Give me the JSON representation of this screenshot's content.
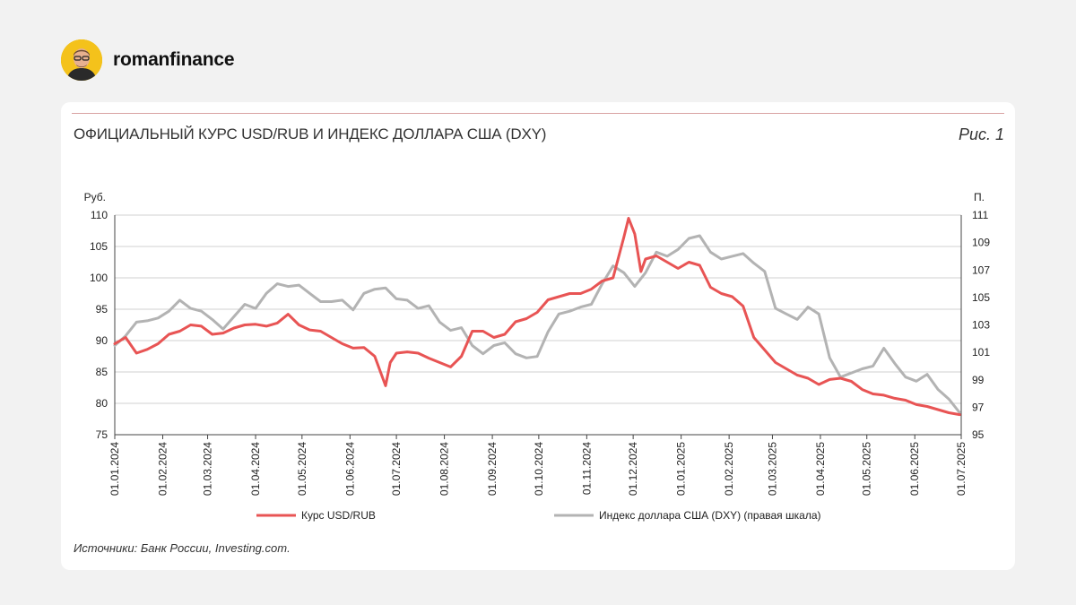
{
  "brand": {
    "name": "romanfinance"
  },
  "figure": {
    "title": "ОФИЦИАЛЬНЫЙ КУРС USD/RUB И ИНДЕКС ДОЛЛАРА США (DXY)",
    "label": "Рис. 1",
    "source": "Источники: Банк России, Investing.com."
  },
  "colors": {
    "usdrub": "#e85454",
    "dxy": "#b3b3b3",
    "grid": "#d0d0d0",
    "rule": "#d9a3a3"
  },
  "chart_data": {
    "type": "line",
    "y_left": {
      "label": "Руб.",
      "min": 75,
      "max": 110,
      "ticks": [
        75,
        80,
        85,
        90,
        95,
        100,
        105,
        110
      ]
    },
    "y_right": {
      "label": "П.",
      "min": 95,
      "max": 111,
      "ticks": [
        95,
        97,
        99,
        101,
        103,
        105,
        107,
        109,
        111
      ]
    },
    "x_ticks": [
      "01.01.2024",
      "01.02.2024",
      "01.03.2024",
      "01.04.2024",
      "01.05.2024",
      "01.06.2024",
      "01.07.2024",
      "01.08.2024",
      "01.09.2024",
      "01.10.2024",
      "01.11.2024",
      "01.12.2024",
      "01.01.2025",
      "01.02.2025",
      "01.03.2025",
      "01.04.2025",
      "01.05.2025",
      "01.06.2025",
      "01.07.2025"
    ],
    "grid": true,
    "legend_position": "bottom",
    "series": [
      {
        "name": "Курс USD/RUB",
        "axis": "left",
        "x": [
          "01.01.2024",
          "08.01.2024",
          "15.01.2024",
          "22.01.2024",
          "29.01.2024",
          "05.02.2024",
          "12.02.2024",
          "19.02.2024",
          "26.02.2024",
          "04.03.2024",
          "11.03.2024",
          "18.03.2024",
          "25.03.2024",
          "01.04.2024",
          "08.04.2024",
          "15.04.2024",
          "22.04.2024",
          "29.04.2024",
          "06.05.2024",
          "13.05.2024",
          "20.05.2024",
          "27.05.2024",
          "03.06.2024",
          "10.06.2024",
          "17.06.2024",
          "24.06.2024",
          "27.06.2024",
          "01.07.2024",
          "08.07.2024",
          "15.07.2024",
          "22.07.2024",
          "29.07.2024",
          "05.08.2024",
          "12.08.2024",
          "19.08.2024",
          "26.08.2024",
          "02.09.2024",
          "09.09.2024",
          "16.09.2024",
          "23.09.2024",
          "30.09.2024",
          "07.10.2024",
          "14.10.2024",
          "21.10.2024",
          "28.10.2024",
          "04.11.2024",
          "11.11.2024",
          "18.11.2024",
          "25.11.2024",
          "28.11.2024",
          "02.12.2024",
          "06.12.2024",
          "09.12.2024",
          "16.12.2024",
          "23.12.2024",
          "30.12.2024",
          "06.01.2025",
          "13.01.2025",
          "20.01.2025",
          "27.01.2025",
          "03.02.2025",
          "10.02.2025",
          "17.02.2025",
          "24.02.2025",
          "03.03.2025",
          "10.03.2025",
          "17.03.2025",
          "24.03.2025",
          "31.03.2025",
          "07.04.2025",
          "14.04.2025",
          "21.04.2025",
          "28.04.2025",
          "05.05.2025",
          "12.05.2025",
          "19.05.2025",
          "26.05.2025",
          "02.06.2025",
          "09.06.2025",
          "16.06.2025",
          "23.06.2025",
          "30.06.2025"
        ],
        "values": [
          89.5,
          90.5,
          88.0,
          88.6,
          89.5,
          91.0,
          91.5,
          92.5,
          92.3,
          91.0,
          91.2,
          92.0,
          92.5,
          92.6,
          92.3,
          92.8,
          94.2,
          92.5,
          91.7,
          91.5,
          90.5,
          89.5,
          88.8,
          88.9,
          87.5,
          82.8,
          86.5,
          88.0,
          88.2,
          88.0,
          87.2,
          86.5,
          85.8,
          87.5,
          91.5,
          91.5,
          90.5,
          91.0,
          93.0,
          93.5,
          94.5,
          96.5,
          97.0,
          97.5,
          97.5,
          98.2,
          99.5,
          100.0,
          106.5,
          109.5,
          107.0,
          101.0,
          103.0,
          103.5,
          102.5,
          101.5,
          102.5,
          102.0,
          98.5,
          97.5,
          97.0,
          95.5,
          90.5,
          88.5,
          86.5,
          85.5,
          84.5,
          84.0,
          83.0,
          83.8,
          84.0,
          83.5,
          82.2,
          81.5,
          81.3,
          80.8,
          80.5,
          79.8,
          79.5,
          79.0,
          78.5,
          78.2
        ]
      },
      {
        "name": "Индекс доллара США (DXY) (правая шкала)",
        "axis": "right",
        "x": [
          "01.01.2024",
          "08.01.2024",
          "15.01.2024",
          "22.01.2024",
          "29.01.2024",
          "05.02.2024",
          "12.02.2024",
          "19.02.2024",
          "26.02.2024",
          "04.03.2024",
          "11.03.2024",
          "18.03.2024",
          "25.03.2024",
          "01.04.2024",
          "08.04.2024",
          "15.04.2024",
          "22.04.2024",
          "29.04.2024",
          "06.05.2024",
          "13.05.2024",
          "20.05.2024",
          "27.05.2024",
          "03.06.2024",
          "10.06.2024",
          "17.06.2024",
          "24.06.2024",
          "01.07.2024",
          "08.07.2024",
          "15.07.2024",
          "22.07.2024",
          "29.07.2024",
          "05.08.2024",
          "12.08.2024",
          "19.08.2024",
          "26.08.2024",
          "02.09.2024",
          "09.09.2024",
          "16.09.2024",
          "23.09.2024",
          "30.09.2024",
          "07.10.2024",
          "14.10.2024",
          "21.10.2024",
          "28.10.2024",
          "04.11.2024",
          "11.11.2024",
          "18.11.2024",
          "25.11.2024",
          "02.12.2024",
          "09.12.2024",
          "16.12.2024",
          "23.12.2024",
          "30.12.2024",
          "06.01.2025",
          "13.01.2025",
          "20.01.2025",
          "27.01.2025",
          "03.02.2025",
          "10.02.2025",
          "17.02.2025",
          "24.02.2025",
          "03.03.2025",
          "10.03.2025",
          "17.03.2025",
          "24.03.2025",
          "31.03.2025",
          "07.04.2025",
          "14.04.2025",
          "21.04.2025",
          "28.04.2025",
          "05.05.2025",
          "12.05.2025",
          "19.05.2025",
          "26.05.2025",
          "02.06.2025",
          "09.06.2025",
          "16.06.2025",
          "23.06.2025",
          "30.06.2025"
        ],
        "values": [
          101.5,
          102.2,
          103.2,
          103.3,
          103.5,
          104.0,
          104.8,
          104.2,
          104.0,
          103.4,
          102.7,
          103.6,
          104.5,
          104.2,
          105.3,
          106.0,
          105.8,
          105.9,
          105.3,
          104.7,
          104.7,
          104.8,
          104.1,
          105.3,
          105.6,
          105.7,
          104.9,
          104.8,
          104.2,
          104.4,
          103.2,
          102.6,
          102.8,
          101.5,
          100.9,
          101.5,
          101.7,
          100.9,
          100.6,
          100.7,
          102.5,
          103.8,
          104.0,
          104.3,
          104.5,
          106.0,
          107.3,
          106.8,
          105.8,
          106.8,
          108.3,
          108.0,
          108.5,
          109.3,
          109.5,
          108.3,
          107.8,
          108.0,
          108.2,
          107.5,
          106.9,
          104.2,
          103.8,
          103.4,
          104.3,
          103.8,
          100.6,
          99.2,
          99.5,
          99.8,
          100.0,
          101.3,
          100.2,
          99.2,
          98.9,
          99.4,
          98.3,
          97.6,
          96.6
        ]
      }
    ]
  }
}
